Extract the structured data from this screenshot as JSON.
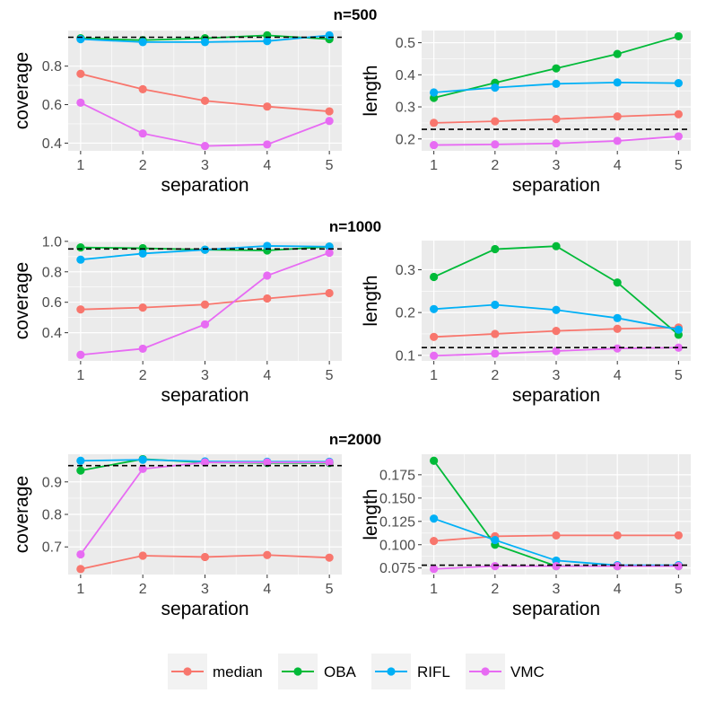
{
  "colors": {
    "panel_bg": "#EBEBEB",
    "grid": "#FFFFFF",
    "reference": "#000000",
    "median": "#F8766D",
    "OBA": "#00BA38",
    "RIFL": "#00B0F6",
    "VMC": "#E76BF3"
  },
  "legend": [
    {
      "key": "median",
      "label": "median"
    },
    {
      "key": "OBA",
      "label": "OBA"
    },
    {
      "key": "RIFL",
      "label": "RIFL"
    },
    {
      "key": "VMC",
      "label": "VMC"
    }
  ],
  "rows": [
    {
      "title": "n=500"
    },
    {
      "title": "n=1000"
    },
    {
      "title": "n=2000"
    }
  ],
  "chart_data": [
    {
      "type": "line",
      "row": 0,
      "col": 0,
      "xlabel": "separation",
      "ylabel": "coverage",
      "x": [
        1,
        2,
        3,
        4,
        5
      ],
      "xlim": [
        0.8,
        5.2
      ],
      "ylim": [
        0.36,
        0.985
      ],
      "yticks": [
        0.4,
        0.6,
        0.8
      ],
      "ytick_labels": [
        "0.4",
        "0.6",
        "0.8"
      ],
      "reference": 0.95,
      "series": [
        {
          "name": "median",
          "values": [
            0.76,
            0.68,
            0.62,
            0.59,
            0.565
          ]
        },
        {
          "name": "OBA",
          "values": [
            0.945,
            0.935,
            0.945,
            0.96,
            0.94
          ]
        },
        {
          "name": "RIFL",
          "values": [
            0.94,
            0.925,
            0.925,
            0.93,
            0.96
          ]
        },
        {
          "name": "VMC",
          "values": [
            0.61,
            0.45,
            0.385,
            0.393,
            0.515
          ]
        }
      ]
    },
    {
      "type": "line",
      "row": 0,
      "col": 1,
      "xlabel": "separation",
      "ylabel": "length",
      "x": [
        1,
        2,
        3,
        4,
        5
      ],
      "xlim": [
        0.8,
        5.2
      ],
      "ylim": [
        0.163,
        0.538
      ],
      "yticks": [
        0.2,
        0.3,
        0.4,
        0.5
      ],
      "ytick_labels": [
        "0.2",
        "0.3",
        "0.4",
        "0.5"
      ],
      "reference": 0.23,
      "series": [
        {
          "name": "median",
          "values": [
            0.25,
            0.255,
            0.262,
            0.27,
            0.277
          ]
        },
        {
          "name": "OBA",
          "values": [
            0.328,
            0.375,
            0.42,
            0.465,
            0.52
          ]
        },
        {
          "name": "RIFL",
          "values": [
            0.345,
            0.36,
            0.372,
            0.376,
            0.374
          ]
        },
        {
          "name": "VMC",
          "values": [
            0.181,
            0.183,
            0.186,
            0.194,
            0.208
          ]
        }
      ]
    },
    {
      "type": "line",
      "row": 1,
      "col": 0,
      "xlabel": "separation",
      "ylabel": "coverage",
      "x": [
        1,
        2,
        3,
        4,
        5
      ],
      "xlim": [
        0.8,
        5.2
      ],
      "ylim": [
        0.215,
        1.005
      ],
      "yticks": [
        0.4,
        0.6,
        0.8,
        1.0
      ],
      "ytick_labels": [
        "0.4",
        "0.6",
        "0.8",
        "1.0"
      ],
      "reference": 0.95,
      "series": [
        {
          "name": "median",
          "values": [
            0.553,
            0.565,
            0.585,
            0.625,
            0.66
          ]
        },
        {
          "name": "OBA",
          "values": [
            0.96,
            0.955,
            0.945,
            0.94,
            0.965
          ]
        },
        {
          "name": "RIFL",
          "values": [
            0.88,
            0.92,
            0.945,
            0.97,
            0.965
          ]
        },
        {
          "name": "VMC",
          "values": [
            0.255,
            0.295,
            0.455,
            0.775,
            0.925
          ]
        }
      ]
    },
    {
      "type": "line",
      "row": 1,
      "col": 1,
      "xlabel": "separation",
      "ylabel": "length",
      "x": [
        1,
        2,
        3,
        4,
        5
      ],
      "xlim": [
        0.8,
        5.2
      ],
      "ylim": [
        0.087,
        0.368
      ],
      "yticks": [
        0.1,
        0.2,
        0.3
      ],
      "ytick_labels": [
        "0.1",
        "0.2",
        "0.3"
      ],
      "reference": 0.118,
      "series": [
        {
          "name": "median",
          "values": [
            0.143,
            0.15,
            0.157,
            0.162,
            0.165
          ]
        },
        {
          "name": "OBA",
          "values": [
            0.283,
            0.348,
            0.355,
            0.27,
            0.148
          ]
        },
        {
          "name": "RIFL",
          "values": [
            0.208,
            0.218,
            0.206,
            0.187,
            0.16
          ]
        },
        {
          "name": "VMC",
          "values": [
            0.099,
            0.104,
            0.11,
            0.116,
            0.118
          ]
        }
      ]
    },
    {
      "type": "line",
      "row": 2,
      "col": 0,
      "xlabel": "separation",
      "ylabel": "coverage",
      "x": [
        1,
        2,
        3,
        4,
        5
      ],
      "xlim": [
        0.8,
        5.2
      ],
      "ylim": [
        0.615,
        0.985
      ],
      "yticks": [
        0.7,
        0.8,
        0.9
      ],
      "ytick_labels": [
        "0.7",
        "0.8",
        "0.9"
      ],
      "reference": 0.95,
      "series": [
        {
          "name": "median",
          "values": [
            0.632,
            0.673,
            0.669,
            0.675,
            0.667
          ]
        },
        {
          "name": "OBA",
          "values": [
            0.935,
            0.97,
            0.96,
            0.958,
            0.958
          ]
        },
        {
          "name": "RIFL",
          "values": [
            0.965,
            0.968,
            0.963,
            0.962,
            0.962
          ]
        },
        {
          "name": "VMC",
          "values": [
            0.677,
            0.94,
            0.96,
            0.96,
            0.96
          ]
        }
      ]
    },
    {
      "type": "line",
      "row": 2,
      "col": 1,
      "xlabel": "separation",
      "ylabel": "length",
      "x": [
        1,
        2,
        3,
        4,
        5
      ],
      "xlim": [
        0.8,
        5.2
      ],
      "ylim": [
        0.068,
        0.197
      ],
      "yticks": [
        0.075,
        0.1,
        0.125,
        0.15,
        0.175
      ],
      "ytick_labels": [
        "0.075",
        "0.100",
        "0.125",
        "0.150",
        "0.175"
      ],
      "reference": 0.078,
      "series": [
        {
          "name": "median",
          "values": [
            0.104,
            0.109,
            0.11,
            0.11,
            0.11
          ]
        },
        {
          "name": "OBA",
          "values": [
            0.19,
            0.1,
            0.077,
            0.077,
            0.077
          ]
        },
        {
          "name": "RIFL",
          "values": [
            0.128,
            0.105,
            0.083,
            0.078,
            0.078
          ]
        },
        {
          "name": "VMC",
          "values": [
            0.074,
            0.077,
            0.077,
            0.077,
            0.077
          ]
        }
      ]
    }
  ]
}
